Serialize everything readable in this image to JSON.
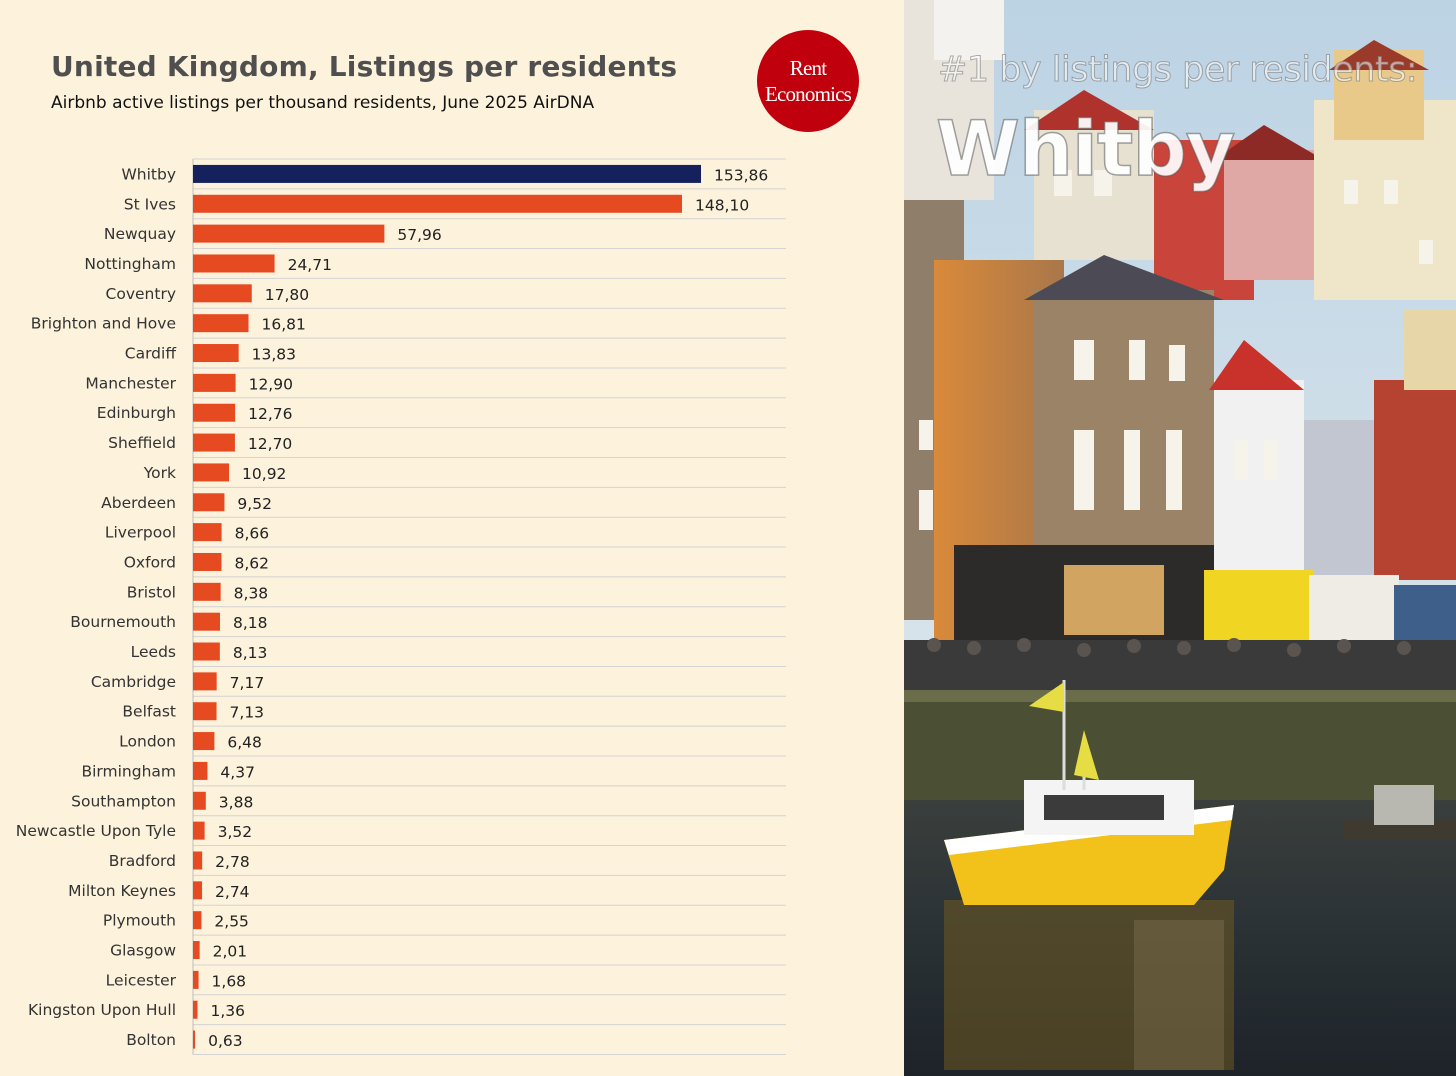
{
  "header": {
    "title": "United Kingdom, Listings per residents",
    "subtitle": "Airbnb active listings per thousand residents, June 2025 AirDNA"
  },
  "logo": {
    "line1": "Rent",
    "line2": "Economics",
    "color": "#c0000c"
  },
  "photo": {
    "kicker": "#1 by listings per residents:",
    "title": "Whitby"
  },
  "colors": {
    "highlight": "#14215c",
    "bar": "#e64a21",
    "background": "#fdf2dc",
    "grid": "#d3d3d3"
  },
  "chart_data": {
    "type": "bar",
    "orientation": "horizontal",
    "title": "United Kingdom, Listings per residents",
    "subtitle": "Airbnb active listings per thousand residents, June 2025 AirDNA",
    "xlabel": "",
    "ylabel": "",
    "xlim": [
      0,
      180
    ],
    "highlight_category": "Whitby",
    "grid": true,
    "legend": "none",
    "categories": [
      "Whitby",
      "St Ives",
      "Newquay",
      "Nottingham",
      "Coventry",
      "Brighton and Hove",
      "Cardiff",
      "Manchester",
      "Edinburgh",
      "Sheffield",
      "York",
      "Aberdeen",
      "Liverpool",
      "Oxford",
      "Bristol",
      "Bournemouth",
      "Leeds",
      "Cambridge",
      "Belfast",
      "London",
      "Birmingham",
      "Southampton",
      "Newcastle Upon Tyle",
      "Bradford",
      "Milton Keynes",
      "Plymouth",
      "Glasgow",
      "Leicester",
      "Kingston Upon Hull",
      "Bolton"
    ],
    "values": [
      153.86,
      148.1,
      57.96,
      24.71,
      17.8,
      16.81,
      13.83,
      12.9,
      12.76,
      12.7,
      10.92,
      9.52,
      8.66,
      8.62,
      8.38,
      8.18,
      8.13,
      7.17,
      7.13,
      6.48,
      4.37,
      3.88,
      3.52,
      2.78,
      2.74,
      2.55,
      2.01,
      1.68,
      1.36,
      0.63
    ],
    "value_labels": [
      "153,86",
      "148,10",
      "57,96",
      "24,71",
      "17,80",
      "16,81",
      "13,83",
      "12,90",
      "12,76",
      "12,70",
      "10,92",
      "9,52",
      "8,66",
      "8,62",
      "8,38",
      "8,18",
      "8,13",
      "7,17",
      "7,13",
      "6,48",
      "4,37",
      "3,88",
      "3,52",
      "2,78",
      "2,74",
      "2,55",
      "2,01",
      "1,68",
      "1,36",
      "0,63"
    ]
  }
}
